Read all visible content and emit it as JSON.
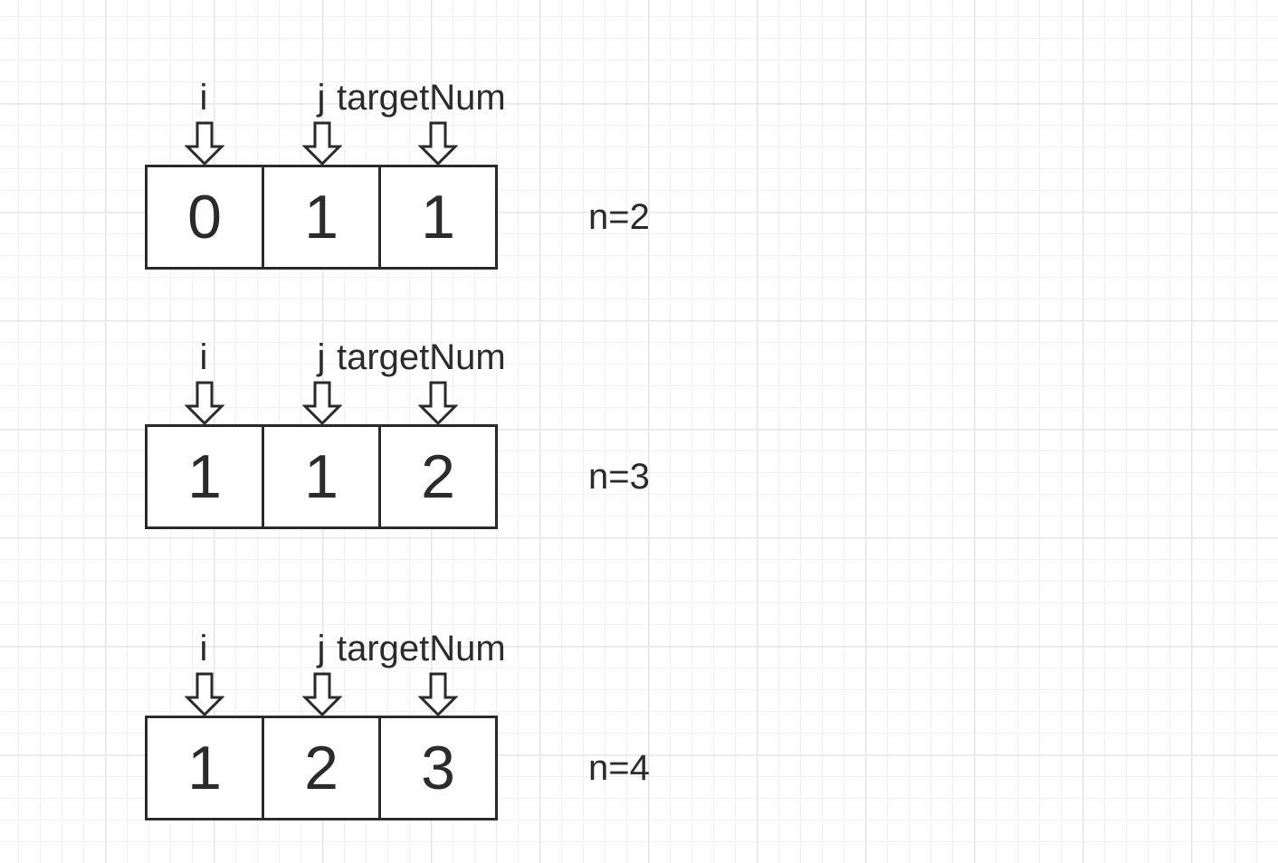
{
  "pointer_labels": {
    "i": "i",
    "j": "j",
    "target": "targetNum"
  },
  "icons": {
    "pointer": "down-arrow-icon"
  },
  "colors": {
    "stroke": "#2b2b2b",
    "grid_major": "#e6e6e6",
    "grid_minor": "#f1f1f1"
  },
  "steps": [
    {
      "cells": [
        "0",
        "1",
        "1"
      ],
      "label": "n=2"
    },
    {
      "cells": [
        "1",
        "1",
        "2"
      ],
      "label": "n=3"
    },
    {
      "cells": [
        "1",
        "2",
        "3"
      ],
      "label": "n=4"
    }
  ]
}
